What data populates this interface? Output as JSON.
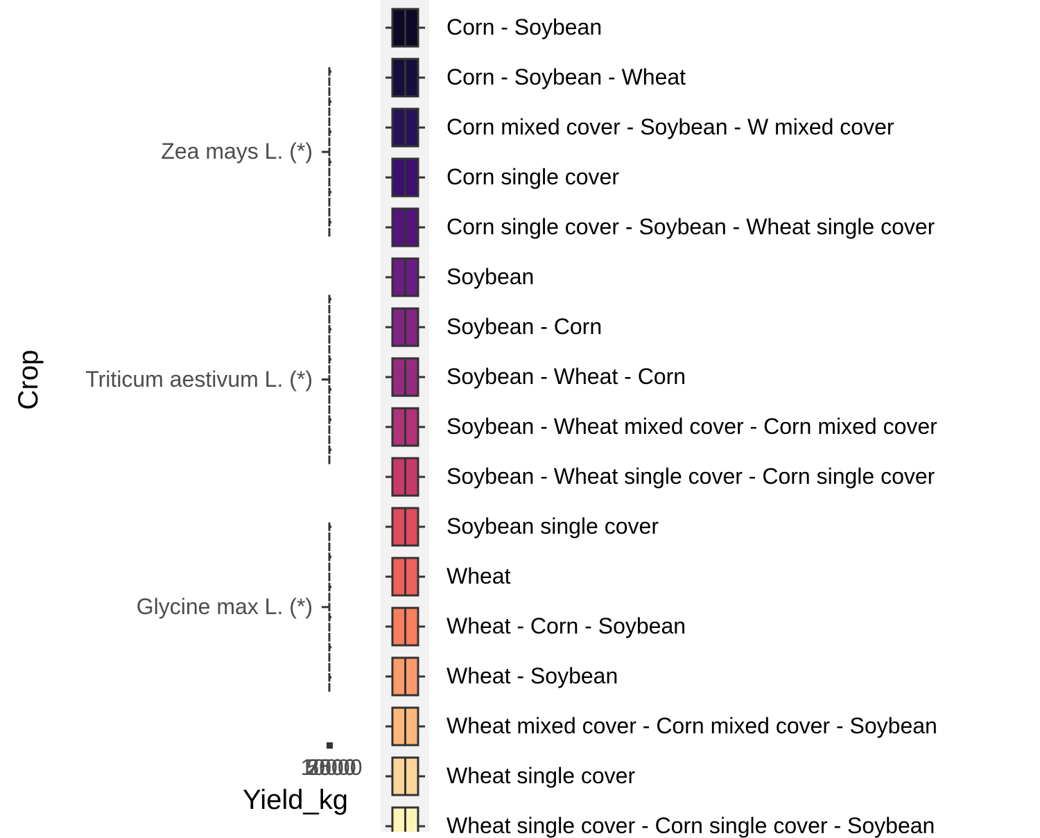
{
  "chart_data": {
    "type": "boxplot",
    "orientation": "horizontal",
    "title": "",
    "xlabel": "Yield_kg",
    "ylabel": "Crop",
    "x_tick_labels_overlapping": [
      "2500",
      "5000",
      "7500",
      "10000"
    ],
    "categories": [
      "Zea mays L. (*)",
      "Triticum aestivum L. (*)",
      "Glycine max L. (*)"
    ],
    "legend": {
      "title": "",
      "position": "right",
      "entries": [
        {
          "label": "Corn - Soybean",
          "color": "#0c0926"
        },
        {
          "label": "Corn - Soybean - Wheat",
          "color": "#160f3d"
        },
        {
          "label": "Corn mixed cover - Soybean - W mixed cover",
          "color": "#27125a"
        },
        {
          "label": "Corn single cover",
          "color": "#3d0f70"
        },
        {
          "label": "Corn single cover - Soybean - Wheat single cover",
          "color": "#53157c"
        },
        {
          "label": "Soybean",
          "color": "#6a1d82"
        },
        {
          "label": "Soybean - Corn",
          "color": "#802582"
        },
        {
          "label": "Soybean - Wheat - Corn",
          "color": "#962c7e"
        },
        {
          "label": "Soybean - Wheat mixed cover - Corn mixed cover",
          "color": "#b03278"
        },
        {
          "label": "Soybean - Wheat single cover - Corn single cover",
          "color": "#c83a6c"
        },
        {
          "label": "Soybean single cover",
          "color": "#e04c5e"
        },
        {
          "label": "Wheat",
          "color": "#f0605d"
        },
        {
          "label": "Wheat - Corn - Soybean",
          "color": "#f97d5f"
        },
        {
          "label": "Wheat - Soybean",
          "color": "#fd9b6c"
        },
        {
          "label": "Wheat mixed cover - Corn mixed cover - Soybean",
          "color": "#feb87e"
        },
        {
          "label": "Wheat single cover",
          "color": "#fed598"
        },
        {
          "label": "Wheat single cover - Corn single cover - Soybean",
          "color": "#fcf5b8"
        }
      ]
    }
  }
}
